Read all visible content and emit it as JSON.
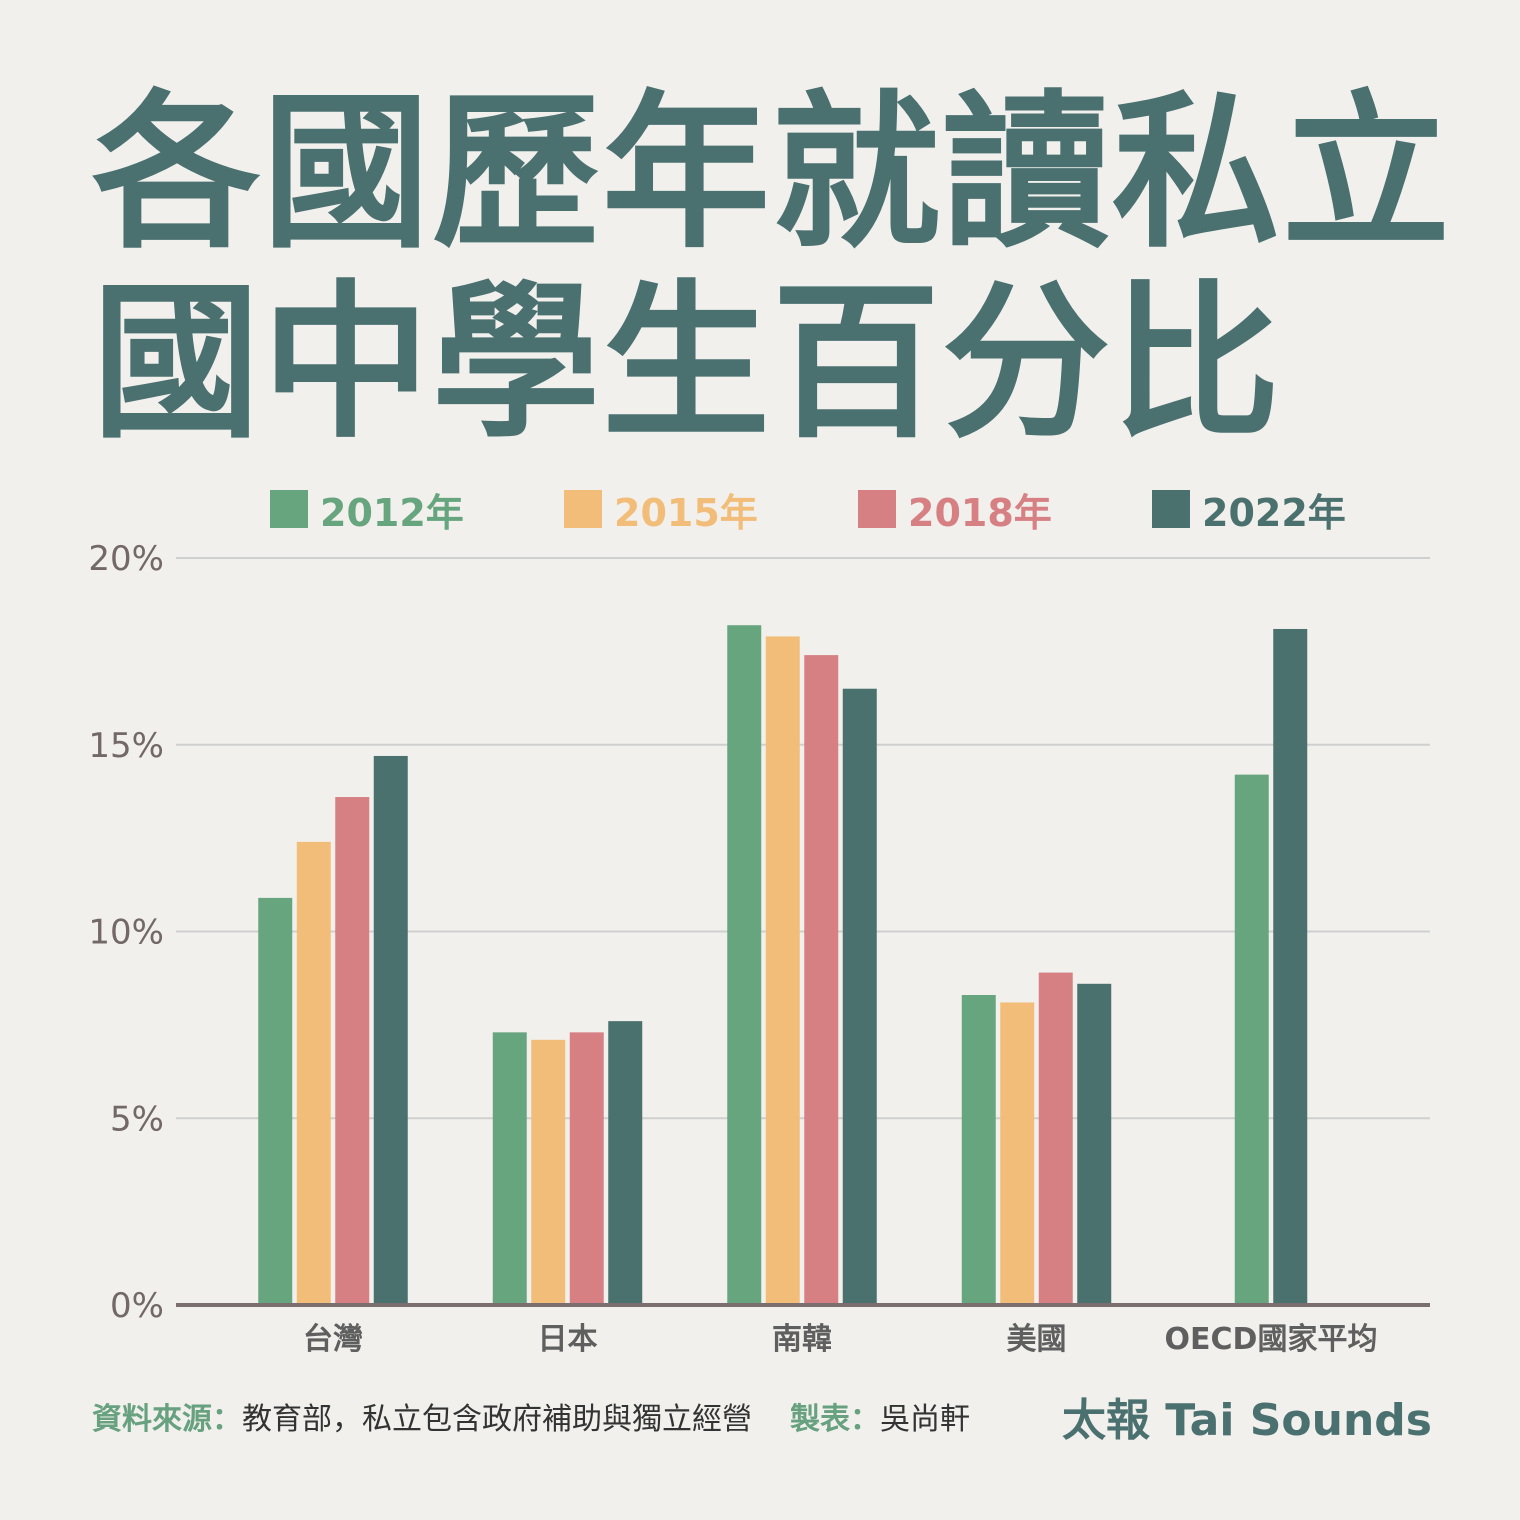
{
  "title_lines": [
    "各國歷年就讀私立",
    "國中學生百分比"
  ],
  "footer": {
    "source_label": "資料來源：",
    "source_text": "教育部，私立包含政府補助與獨立經營",
    "maker_label": "製表：",
    "maker_text": "吳尚軒",
    "brand": "太報 Tai Sounds"
  },
  "chart_data": {
    "type": "bar",
    "title": "各國歷年就讀私立國中學生百分比",
    "categories": [
      "台灣",
      "日本",
      "南韓",
      "美國",
      "OECD國家平均"
    ],
    "series": [
      {
        "name": "2012年",
        "color": "#67a57f",
        "values": [
          10.9,
          7.3,
          18.2,
          8.3,
          14.2
        ]
      },
      {
        "name": "2015年",
        "color": "#f2bd78",
        "values": [
          12.4,
          7.1,
          17.9,
          8.1,
          null
        ]
      },
      {
        "name": "2018年",
        "color": "#d68084",
        "values": [
          13.6,
          7.3,
          17.4,
          8.9,
          null
        ]
      },
      {
        "name": "2022年",
        "color": "#4b716f",
        "values": [
          14.7,
          7.6,
          16.5,
          8.6,
          18.1
        ]
      }
    ],
    "yticks": [
      "0%",
      "5%",
      "10%",
      "15%",
      "20%"
    ],
    "ylim": [
      0,
      20
    ],
    "grid": true,
    "legend": "top",
    "colors": {
      "grid": "#cfcfcf",
      "axis": "#7a6e6e",
      "ytick": "#736868",
      "xtick": "#5f5f5f"
    }
  }
}
